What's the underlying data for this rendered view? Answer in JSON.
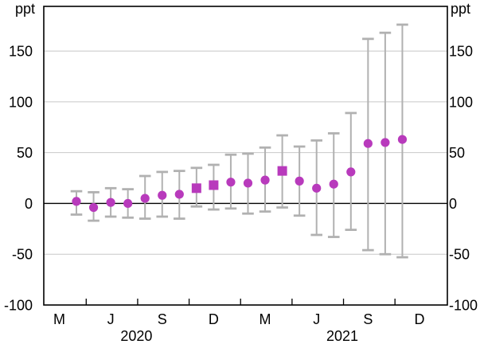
{
  "units": {
    "left": "ppt",
    "right": "ppt"
  },
  "colors": {
    "marker": "#b83abc",
    "error_bar": "#b1b1b1",
    "gridline": "#c8c8c8",
    "axis": "#000000",
    "background": "#ffffff"
  },
  "chart_data": {
    "type": "scatter",
    "title": "",
    "ylabel": "ppt",
    "ylim": [
      -100,
      194
    ],
    "yticks": [
      150,
      100,
      50,
      0,
      -50,
      -100
    ],
    "grid": true,
    "legend_position": "none",
    "series": [
      {
        "name": "point-estimate-with-confidence-interval",
        "points": [
          {
            "x": "Apr 2020",
            "value": 2,
            "ci_low": -11,
            "ci_high": 12,
            "marker": "circle"
          },
          {
            "x": "May 2020",
            "value": -4,
            "ci_low": -17,
            "ci_high": 11,
            "marker": "circle"
          },
          {
            "x": "Jun 2020",
            "value": 1,
            "ci_low": -13,
            "ci_high": 15,
            "marker": "circle"
          },
          {
            "x": "Jul 2020",
            "value": 0,
            "ci_low": -14,
            "ci_high": 14,
            "marker": "circle"
          },
          {
            "x": "Aug 2020",
            "value": 5,
            "ci_low": -15,
            "ci_high": 27,
            "marker": "circle"
          },
          {
            "x": "Sep 2020",
            "value": 8,
            "ci_low": -13,
            "ci_high": 31,
            "marker": "circle"
          },
          {
            "x": "Oct 2020",
            "value": 9,
            "ci_low": -15,
            "ci_high": 32,
            "marker": "circle"
          },
          {
            "x": "Nov 2020",
            "value": 15,
            "ci_low": -3,
            "ci_high": 35,
            "marker": "square"
          },
          {
            "x": "Dec 2020",
            "value": 18,
            "ci_low": -6,
            "ci_high": 38,
            "marker": "square"
          },
          {
            "x": "Jan 2021",
            "value": 21,
            "ci_low": -5,
            "ci_high": 48,
            "marker": "circle"
          },
          {
            "x": "Feb 2021",
            "value": 20,
            "ci_low": -10,
            "ci_high": 49,
            "marker": "circle"
          },
          {
            "x": "Mar 2021",
            "value": 23,
            "ci_low": -8,
            "ci_high": 55,
            "marker": "circle"
          },
          {
            "x": "Apr 2021",
            "value": 32,
            "ci_low": -4,
            "ci_high": 67,
            "marker": "square"
          },
          {
            "x": "May 2021",
            "value": 22,
            "ci_low": -12,
            "ci_high": 56,
            "marker": "circle"
          },
          {
            "x": "Jun 2021",
            "value": 15,
            "ci_low": -31,
            "ci_high": 62,
            "marker": "circle"
          },
          {
            "x": "Jul 2021",
            "value": 19,
            "ci_low": -33,
            "ci_high": 69,
            "marker": "circle"
          },
          {
            "x": "Aug 2021",
            "value": 31,
            "ci_low": -26,
            "ci_high": 89,
            "marker": "circle"
          },
          {
            "x": "Sep 2021",
            "value": 59,
            "ci_low": -46,
            "ci_high": 162,
            "marker": "circle"
          },
          {
            "x": "Oct 2021",
            "value": 60,
            "ci_low": -50,
            "ci_high": 168,
            "marker": "circle"
          },
          {
            "x": "Nov 2021",
            "value": 63,
            "ci_low": -53,
            "ci_high": 176,
            "marker": "circle"
          }
        ]
      }
    ],
    "x_axis": {
      "quarter_labels": [
        {
          "label": "M",
          "month_offset": -1
        },
        {
          "label": "J",
          "month_offset": 2
        },
        {
          "label": "S",
          "month_offset": 5
        },
        {
          "label": "D",
          "month_offset": 8
        },
        {
          "label": "M",
          "month_offset": 11
        },
        {
          "label": "J",
          "month_offset": 14
        },
        {
          "label": "S",
          "month_offset": 17
        },
        {
          "label": "D",
          "month_offset": 20
        }
      ],
      "year_labels": [
        {
          "label": "2020",
          "center_month_offset": 3.5
        },
        {
          "label": "2021",
          "center_month_offset": 15.5
        }
      ],
      "tick_month_offsets": [
        0.57,
        3.57,
        6.57,
        9.57,
        12.57,
        15.57,
        18.57
      ]
    }
  }
}
